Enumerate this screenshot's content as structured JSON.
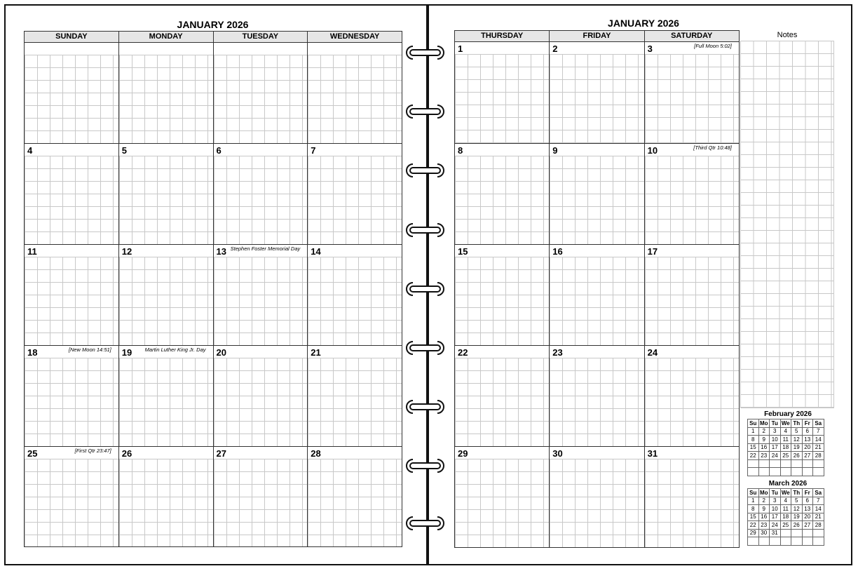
{
  "left_page": {
    "title": "JANUARY 2026",
    "days": [
      "SUNDAY",
      "MONDAY",
      "TUESDAY",
      "WEDNESDAY"
    ],
    "rows": [
      [],
      [
        {
          "day": 4
        },
        {
          "day": 5
        },
        {
          "day": 6
        },
        {
          "day": 7
        }
      ],
      [
        {
          "day": 11
        },
        {
          "day": 12
        },
        {
          "day": 13,
          "note": "Stephen Foster Memorial Day"
        },
        {
          "day": 14
        }
      ],
      [
        {
          "day": 18,
          "note": "[New Moon 14:51]"
        },
        {
          "day": 19,
          "note": "Martin Luther King Jr. Day"
        },
        {
          "day": 20
        },
        {
          "day": 21
        }
      ],
      [
        {
          "day": 25,
          "note": "[First Qtr 23:47]"
        },
        {
          "day": 26
        },
        {
          "day": 27
        },
        {
          "day": 28
        }
      ]
    ]
  },
  "right_page": {
    "title": "JANUARY 2026",
    "days": [
      "THURSDAY",
      "FRIDAY",
      "SATURDAY"
    ],
    "rows": [
      [
        {
          "day": 1
        },
        {
          "day": 2
        },
        {
          "day": 3,
          "note": "[Full Moon 5:02]"
        }
      ],
      [
        {
          "day": 8
        },
        {
          "day": 9
        },
        {
          "day": 10,
          "note": "[Third Qtr 10:48]"
        }
      ],
      [
        {
          "day": 15
        },
        {
          "day": 16
        },
        {
          "day": 17
        }
      ],
      [
        {
          "day": 22
        },
        {
          "day": 23
        },
        {
          "day": 24
        }
      ],
      [
        {
          "day": 29
        },
        {
          "day": 30
        },
        {
          "day": 31
        }
      ]
    ],
    "notes_heading": "Notes",
    "mini_calendars": [
      {
        "title": "February 2026",
        "weekdays": [
          "Su",
          "Mo",
          "Tu",
          "We",
          "Th",
          "Fr",
          "Sa"
        ],
        "weeks": [
          [
            1,
            2,
            3,
            4,
            5,
            6,
            7
          ],
          [
            8,
            9,
            10,
            11,
            12,
            13,
            14
          ],
          [
            15,
            16,
            17,
            18,
            19,
            20,
            21
          ],
          [
            22,
            23,
            24,
            25,
            26,
            27,
            28
          ]
        ]
      },
      {
        "title": "March 2026",
        "weekdays": [
          "Su",
          "Mo",
          "Tu",
          "We",
          "Th",
          "Fr",
          "Sa"
        ],
        "weeks": [
          [
            1,
            2,
            3,
            4,
            5,
            6,
            7
          ],
          [
            8,
            9,
            10,
            11,
            12,
            13,
            14
          ],
          [
            15,
            16,
            17,
            18,
            19,
            20,
            21
          ],
          [
            22,
            23,
            24,
            25,
            26,
            27,
            28
          ],
          [
            29,
            30,
            31
          ]
        ]
      }
    ]
  }
}
